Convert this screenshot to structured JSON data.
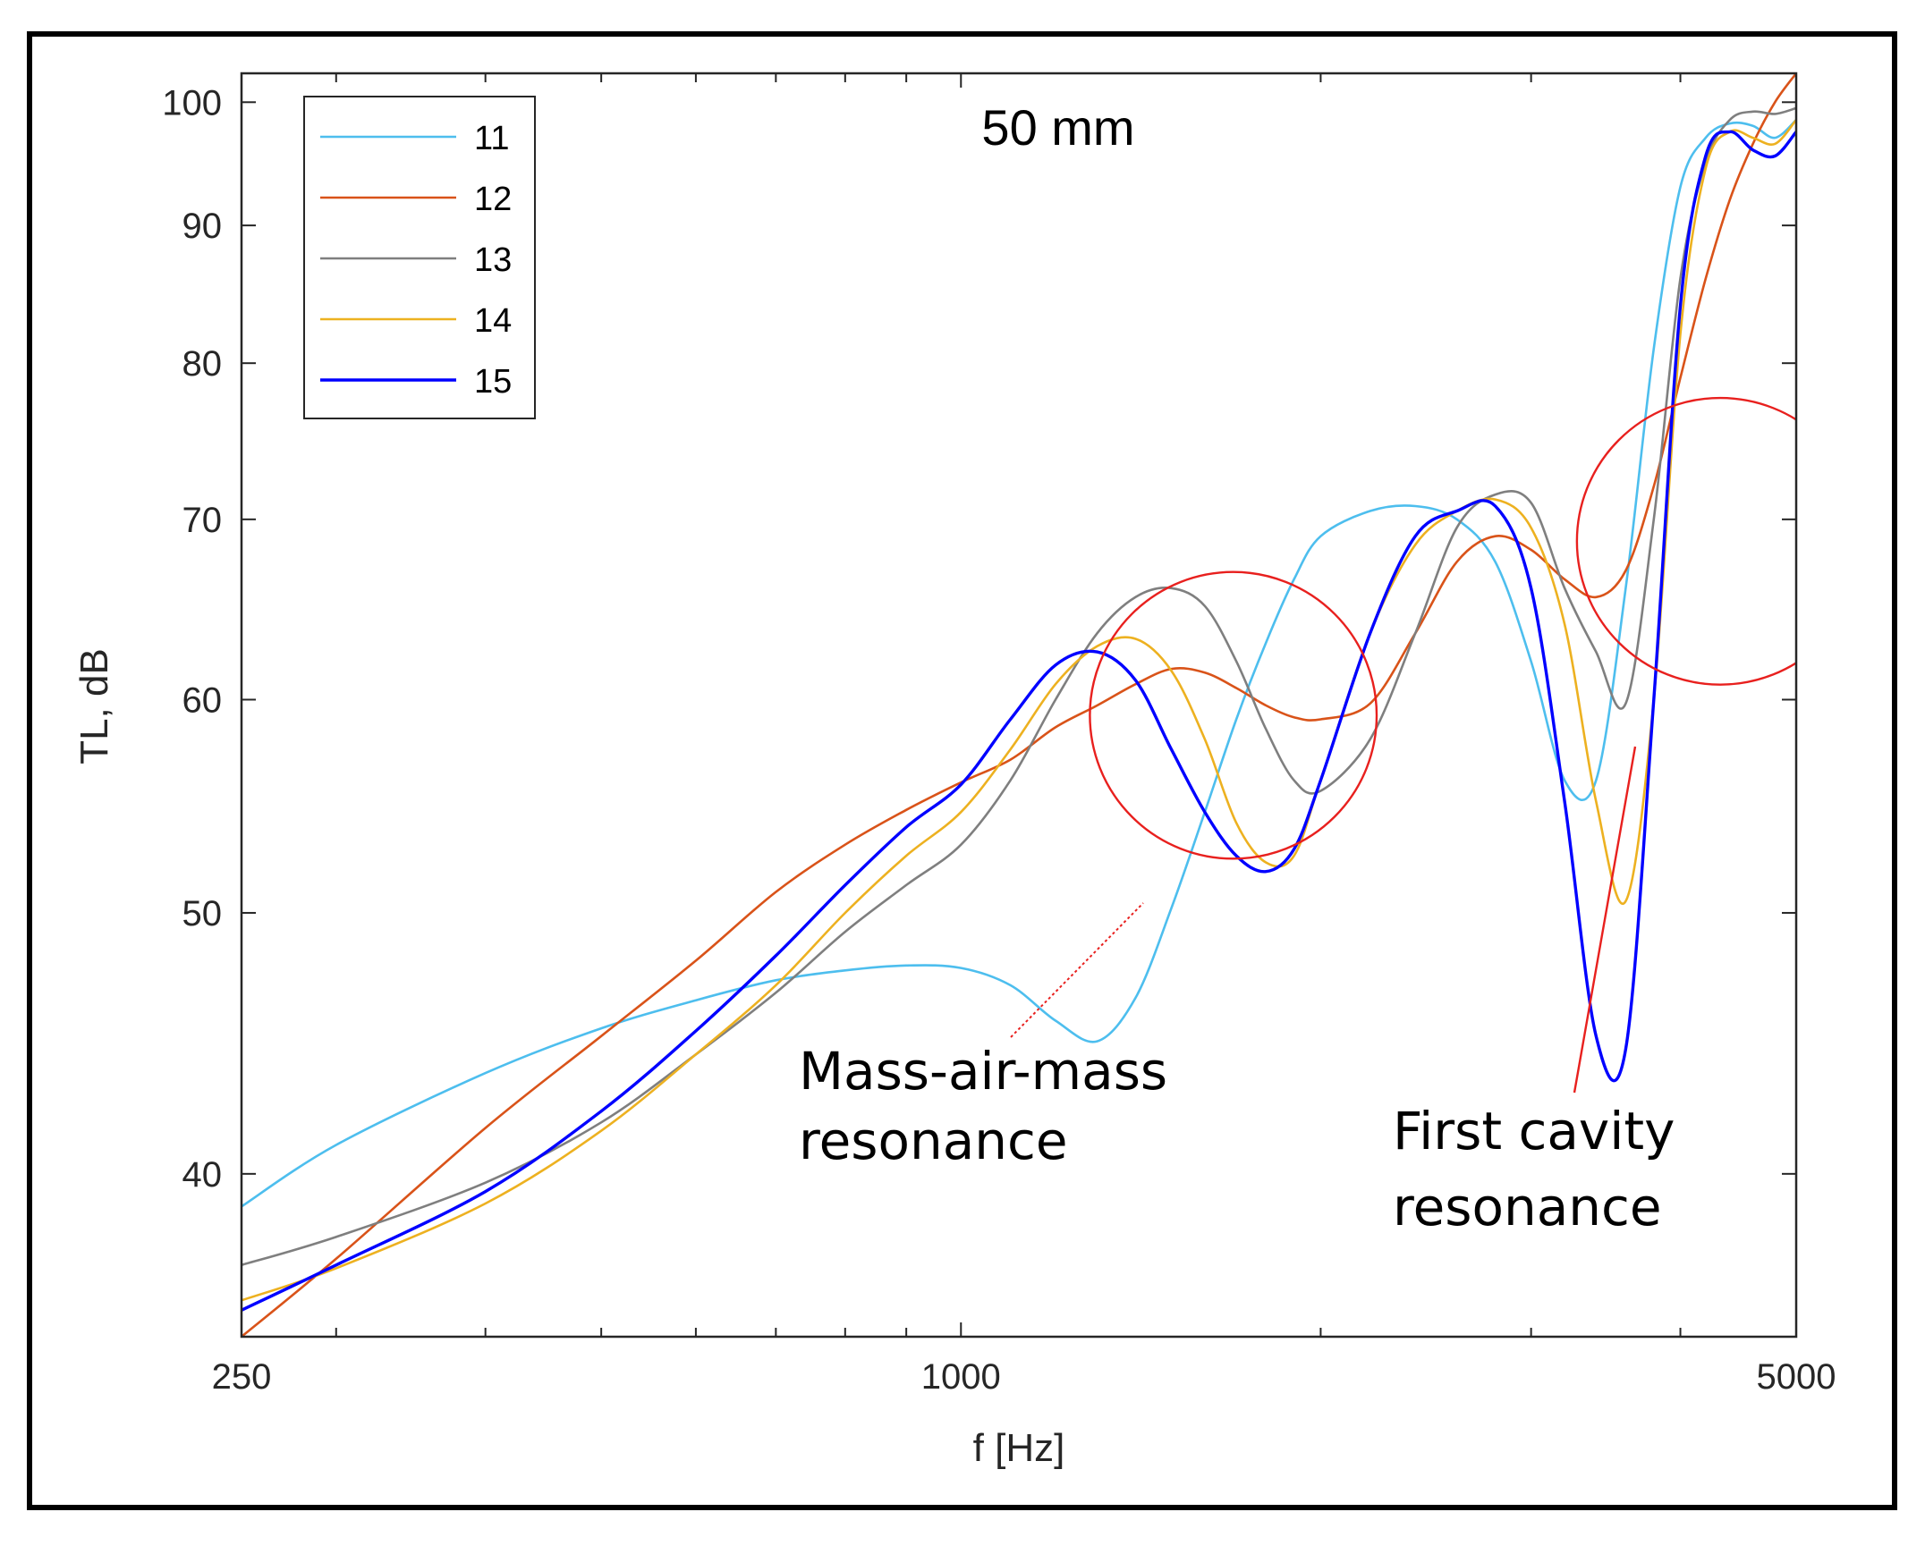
{
  "chart_data": {
    "type": "line",
    "title": "50 mm",
    "xlabel": "f [Hz]",
    "ylabel": "TL, dB",
    "xscale": "log",
    "yscale": "log",
    "xlim": [
      250,
      5000
    ],
    "ylim": [
      34.8,
      102.5
    ],
    "xticks": [
      250,
      1000,
      5000
    ],
    "yticks": [
      40,
      50,
      60,
      70,
      80,
      90,
      100
    ],
    "grid": false,
    "legend_position": "top-left",
    "series": [
      {
        "name": "11",
        "color": "#4DBEEE",
        "x": [
          250,
          300,
          400,
          500,
          600,
          700,
          800,
          900,
          1000,
          1100,
          1200,
          1300,
          1400,
          1500,
          1600,
          1700,
          1800,
          1900,
          2000,
          2200,
          2400,
          2600,
          2800,
          3000,
          3200,
          3400,
          3600,
          3800,
          4000,
          4200,
          4400,
          4600,
          4800,
          5000
        ],
        "y": [
          38.9,
          41.0,
          43.6,
          45.3,
          46.4,
          47.2,
          47.6,
          47.8,
          47.7,
          47.0,
          45.6,
          44.8,
          46.5,
          50.2,
          54.5,
          59.0,
          63.0,
          66.5,
          69.0,
          70.5,
          70.8,
          70.0,
          67.5,
          62.0,
          56.0,
          56.0,
          66.0,
          81.0,
          93.0,
          97.0,
          98.2,
          98.0,
          97.0,
          98.5
        ]
      },
      {
        "name": "12",
        "color": "#D95319",
        "x": [
          250,
          300,
          400,
          500,
          600,
          700,
          800,
          900,
          1000,
          1100,
          1200,
          1300,
          1400,
          1500,
          1600,
          1700,
          1800,
          1900,
          2000,
          2200,
          2400,
          2600,
          2800,
          3000,
          3200,
          3400,
          3600,
          3800,
          4000,
          4200,
          4400,
          4600,
          4800,
          5000
        ],
        "y": [
          34.8,
          37.2,
          41.6,
          45.0,
          48.0,
          50.9,
          53.0,
          54.6,
          55.9,
          57.0,
          58.6,
          59.7,
          60.8,
          61.6,
          61.4,
          60.6,
          59.7,
          59.1,
          59.0,
          59.8,
          63.5,
          67.5,
          69.0,
          68.2,
          66.5,
          65.5,
          67.0,
          72.0,
          79.0,
          86.0,
          92.0,
          96.5,
          100.0,
          102.5
        ]
      },
      {
        "name": "13",
        "color": "#7F7F7F",
        "x": [
          250,
          300,
          400,
          500,
          600,
          700,
          800,
          900,
          1000,
          1100,
          1200,
          1300,
          1400,
          1500,
          1600,
          1700,
          1800,
          1900,
          2000,
          2200,
          2400,
          2600,
          2800,
          3000,
          3200,
          3400,
          3600,
          3800,
          4000,
          4200,
          4400,
          4600,
          4800,
          5000
        ],
        "y": [
          37.0,
          37.9,
          39.7,
          41.8,
          44.3,
          46.7,
          49.2,
          51.2,
          53.0,
          56.0,
          60.0,
          63.5,
          65.5,
          66.0,
          65.0,
          62.0,
          58.5,
          56.0,
          55.5,
          58.0,
          63.5,
          69.5,
          71.5,
          71.0,
          66.0,
          62.5,
          59.8,
          70.0,
          86.0,
          95.0,
          98.5,
          99.2,
          99.0,
          99.5
        ]
      },
      {
        "name": "14",
        "color": "#EDB120",
        "x": [
          250,
          300,
          400,
          500,
          600,
          700,
          800,
          900,
          1000,
          1100,
          1200,
          1300,
          1400,
          1500,
          1600,
          1700,
          1800,
          1900,
          2000,
          2200,
          2400,
          2600,
          2800,
          3000,
          3200,
          3400,
          3600,
          3800,
          4000,
          4200,
          4400,
          4600,
          4800,
          5000
        ],
        "y": [
          35.9,
          36.9,
          39.0,
          41.5,
          44.3,
          47.0,
          50.0,
          52.5,
          54.5,
          57.5,
          60.8,
          62.8,
          63.2,
          61.5,
          58.0,
          54.0,
          52.2,
          52.5,
          56.0,
          63.5,
          68.5,
          70.5,
          71.2,
          69.5,
          64.0,
          55.0,
          50.5,
          60.0,
          82.0,
          94.5,
          97.5,
          97.0,
          96.5,
          98.5
        ]
      },
      {
        "name": "15",
        "color": "#0000FF",
        "x": [
          250,
          300,
          400,
          500,
          600,
          700,
          800,
          900,
          1000,
          1100,
          1200,
          1300,
          1400,
          1500,
          1600,
          1700,
          1800,
          1900,
          2000,
          2200,
          2400,
          2600,
          2800,
          3000,
          3200,
          3400,
          3600,
          3800,
          4000,
          4200,
          4400,
          4600,
          4800,
          5000
        ],
        "y": [
          35.6,
          37.0,
          39.4,
          42.2,
          45.2,
          48.2,
          51.2,
          53.8,
          55.8,
          59.0,
          61.8,
          62.5,
          61.0,
          57.5,
          54.5,
          52.5,
          51.8,
          52.8,
          56.0,
          63.5,
          69.0,
          70.5,
          70.8,
          66.0,
          55.0,
          45.0,
          44.5,
          60.0,
          84.0,
          95.5,
          97.5,
          96.0,
          95.5,
          97.5
        ]
      }
    ],
    "annotations": [
      {
        "text_lines": [
          "Mass-air-mass",
          "resonance"
        ],
        "circle_center": [
          1690,
          59.2
        ],
        "circle_radius_decades": 0.12
      },
      {
        "text_lines": [
          "First cavity",
          "resonance"
        ],
        "circle_center": [
          4320,
          68.7
        ],
        "circle_radius_decades": 0.12
      }
    ],
    "annotation_color": "#E8201E"
  }
}
